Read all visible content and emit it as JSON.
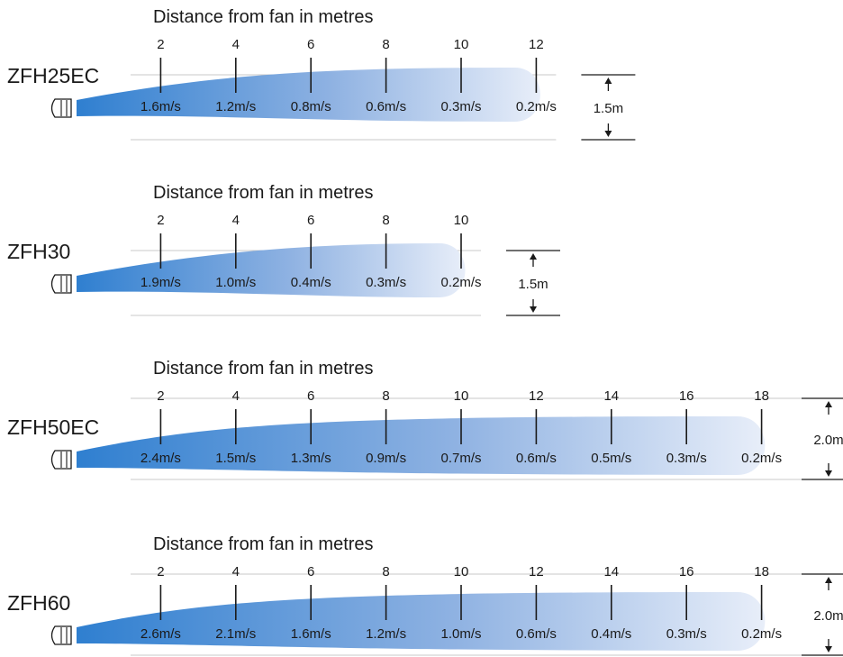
{
  "colors": {
    "plume_start": "#2f7fd0",
    "plume_end": "#e8eef9",
    "guide": "#c8c8c8",
    "ink": "#1a1a1a"
  },
  "icons": {
    "fan": "fan-nozzle-icon",
    "arrow": "arrow-icon"
  },
  "diagrams": [
    {
      "model": "ZFH25EC",
      "heading": "Distance from fan in metres",
      "distances": [
        "2",
        "4",
        "6",
        "8",
        "10",
        "12"
      ],
      "velocities": [
        "1.6m/s",
        "1.2m/s",
        "0.8m/s",
        "0.6m/s",
        "0.3m/s",
        "0.2m/s"
      ],
      "throw_m": 12,
      "width_label": "1.5m"
    },
    {
      "model": "ZFH30",
      "heading": "Distance from fan in metres",
      "distances": [
        "2",
        "4",
        "6",
        "8",
        "10"
      ],
      "velocities": [
        "1.9m/s",
        "1.0m/s",
        "0.4m/s",
        "0.3m/s",
        "0.2m/s"
      ],
      "throw_m": 10,
      "width_label": "1.5m"
    },
    {
      "model": "ZFH50EC",
      "heading": "Distance from fan in metres",
      "distances": [
        "2",
        "4",
        "6",
        "8",
        "10",
        "12",
        "14",
        "16",
        "18"
      ],
      "velocities": [
        "2.4m/s",
        "1.5m/s",
        "1.3m/s",
        "0.9m/s",
        "0.7m/s",
        "0.6m/s",
        "0.5m/s",
        "0.3m/s",
        "0.2m/s"
      ],
      "throw_m": 18,
      "width_label": "2.0m"
    },
    {
      "model": "ZFH60",
      "heading": "Distance from fan in metres",
      "distances": [
        "2",
        "4",
        "6",
        "8",
        "10",
        "12",
        "14",
        "16",
        "18"
      ],
      "velocities": [
        "2.6m/s",
        "2.1m/s",
        "1.6m/s",
        "1.2m/s",
        "1.0m/s",
        "0.6m/s",
        "0.4m/s",
        "0.3m/s",
        "0.2m/s"
      ],
      "throw_m": 18,
      "width_label": "2.0m"
    }
  ]
}
